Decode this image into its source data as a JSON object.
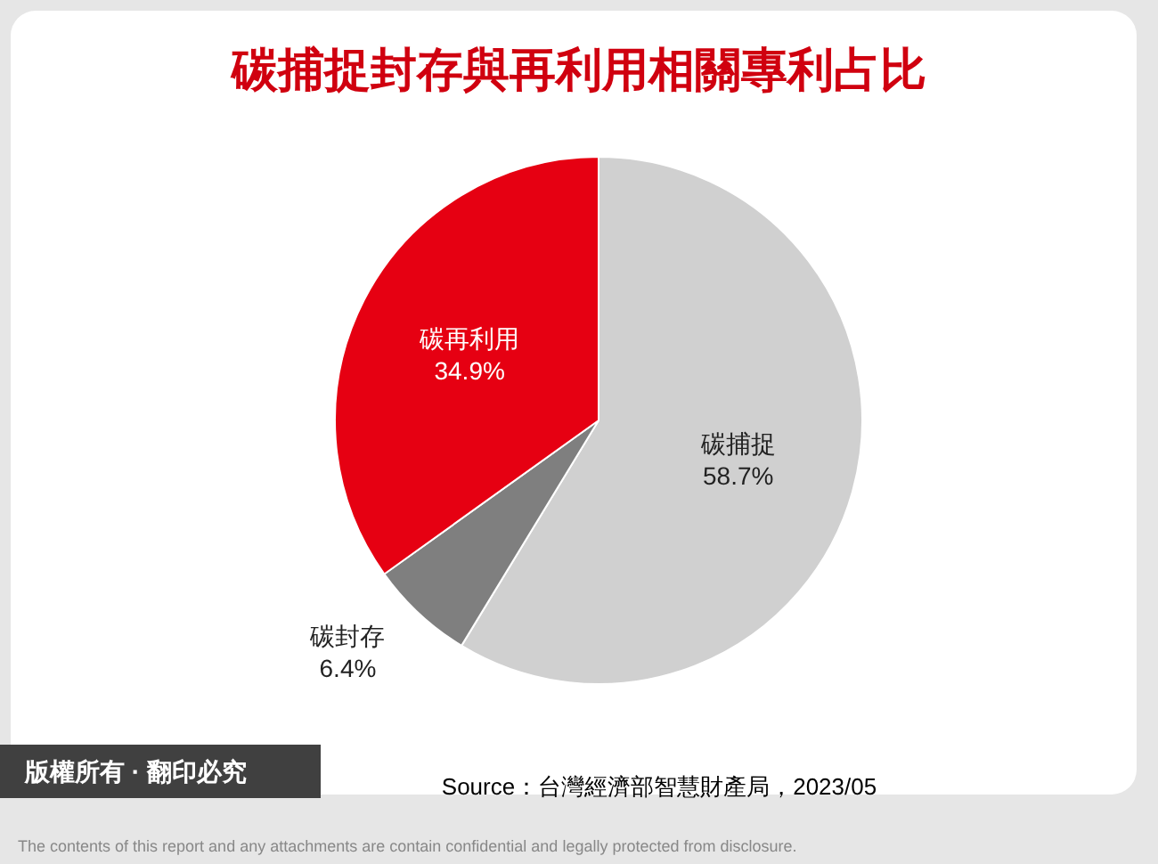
{
  "chart_data": {
    "type": "pie",
    "title": "碳捕捉封存與再利用相關專利占比",
    "categories": [
      "碳捕捉",
      "碳封存",
      "碳再利用"
    ],
    "values": [
      58.7,
      6.4,
      34.9
    ],
    "colors": [
      "#d0d0d0",
      "#7f7f7f",
      "#e60012"
    ],
    "value_labels": [
      "58.7%",
      "6.4%",
      "34.9%"
    ],
    "annotations": [
      "Source：台灣經濟部智慧財產局，2023/05",
      "版權所有 · 翻印必究",
      "The contents of this report and any attachments are contain confidential and legally protected from disclosure."
    ]
  }
}
